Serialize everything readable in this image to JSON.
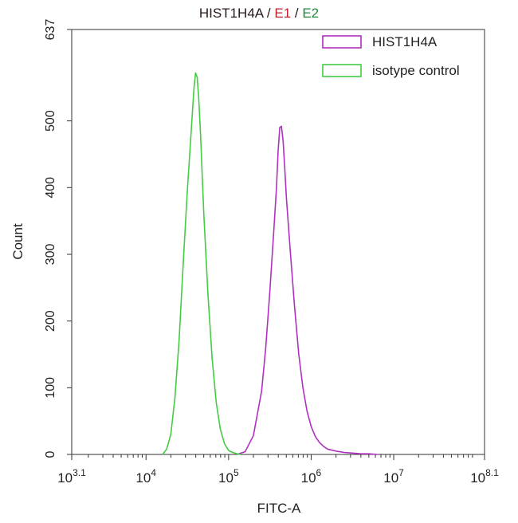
{
  "chart_data": {
    "type": "histogram",
    "title_parts": [
      {
        "text": "HIST1H4A",
        "color": "#2a1a1a"
      },
      {
        "text": " / ",
        "color": "#2a1a1a"
      },
      {
        "text": "E1",
        "color": "#c0202a"
      },
      {
        "text": " / ",
        "color": "#2a1a1a"
      },
      {
        "text": "E2",
        "color": "#1f8a3a"
      }
    ],
    "xlabel": "FITC-A",
    "ylabel": "Count",
    "x_scale": "log10",
    "xlim_exponent": [
      3.1,
      8.1
    ],
    "ylim": [
      0,
      637
    ],
    "y_ticks": [
      {
        "value": 0,
        "label": "0"
      },
      {
        "value": 100,
        "label": "100"
      },
      {
        "value": 200,
        "label": "200"
      },
      {
        "value": 300,
        "label": "300"
      },
      {
        "value": 400,
        "label": "400"
      },
      {
        "value": 500,
        "label": "500"
      },
      {
        "value": 637,
        "label": "637"
      }
    ],
    "x_ticks": [
      {
        "exp": 3.1,
        "base": "10",
        "sup": "3.1"
      },
      {
        "exp": 4,
        "base": "10",
        "sup": "4"
      },
      {
        "exp": 5,
        "base": "10",
        "sup": "5"
      },
      {
        "exp": 6,
        "base": "10",
        "sup": "6"
      },
      {
        "exp": 7,
        "base": "10",
        "sup": "7"
      },
      {
        "exp": 8.1,
        "base": "10",
        "sup": "8.1"
      }
    ],
    "legend_position": "top-right",
    "series": [
      {
        "name": "HIST1H4A",
        "color": "#b030c0",
        "x_exponent": [
          5.1,
          5.2,
          5.3,
          5.4,
          5.45,
          5.5,
          5.55,
          5.58,
          5.6,
          5.62,
          5.64,
          5.66,
          5.68,
          5.7,
          5.75,
          5.8,
          5.85,
          5.9,
          5.95,
          6.0,
          6.05,
          6.1,
          6.15,
          6.2,
          6.3,
          6.4,
          6.5,
          6.6,
          6.7,
          6.8
        ],
        "y": [
          0,
          4,
          28,
          95,
          160,
          245,
          340,
          400,
          455,
          490,
          492,
          470,
          430,
          385,
          300,
          220,
          150,
          100,
          65,
          42,
          27,
          18,
          12,
          8,
          5,
          3,
          2,
          1,
          1,
          0
        ]
      },
      {
        "name": "isotype control",
        "color": "#44cc44",
        "x_exponent": [
          4.2,
          4.25,
          4.3,
          4.35,
          4.4,
          4.45,
          4.5,
          4.55,
          4.58,
          4.6,
          4.62,
          4.64,
          4.66,
          4.68,
          4.7,
          4.75,
          4.8,
          4.85,
          4.9,
          4.95,
          5.0,
          5.05,
          5.1,
          5.15
        ],
        "y": [
          0,
          8,
          30,
          85,
          170,
          285,
          395,
          490,
          548,
          572,
          565,
          530,
          480,
          420,
          360,
          240,
          145,
          78,
          38,
          16,
          6,
          3,
          1,
          0
        ]
      }
    ]
  }
}
